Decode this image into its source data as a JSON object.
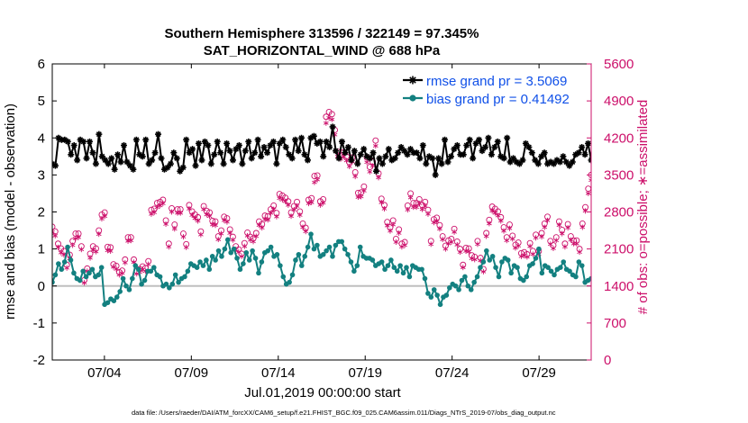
{
  "chart_data": {
    "type": "line",
    "title": "Southern Hemisphere 313596 / 322149 = 97.345%",
    "subtitle": "SAT_HORIZONTAL_WIND @ 688 hPa",
    "xlabel": "Jul.01,2019 00:00:00 start",
    "ylabel": "rmse and bias (model - observation)",
    "y2label": "# of obs: o=possible; ∗=assimilated",
    "footnote": "data file: /Users/raeder/DAI/ATM_forcXX/CAM6_setup/f.e21.FHIST_BGC.f09_025.CAM6assim.011/Diags_NTrS_2019-07/obs_diag_output.nc",
    "xlim": [
      1,
      32
    ],
    "ylim": [
      -2,
      6
    ],
    "y2lim": [
      0,
      5600
    ],
    "xtick_values": [
      4,
      9,
      14,
      19,
      24,
      29
    ],
    "xtick_labels": [
      "07/04",
      "07/09",
      "07/14",
      "07/19",
      "07/24",
      "07/29"
    ],
    "ytick_values": [
      -2,
      -1,
      0,
      1,
      2,
      3,
      4,
      5,
      6
    ],
    "ytick_labels": [
      "-2",
      "-1",
      "0",
      "1",
      "2",
      "3",
      "4",
      "5",
      "6"
    ],
    "y2tick_values": [
      0,
      700,
      1400,
      2100,
      2800,
      3500,
      4200,
      4900,
      5600
    ],
    "y2tick_labels": [
      "0",
      "700",
      "1400",
      "2100",
      "2800",
      "3500",
      "4200",
      "4900",
      "5600"
    ],
    "legend_position": "top-right",
    "colors": {
      "rmse": "#000000",
      "bias": "#138080",
      "obs": "#cc0f6a",
      "legend_text": "#1050e8",
      "right_axis": "#cc0f6a",
      "zero_line": "#bfbfbf"
    },
    "series": [
      {
        "name": "rmse",
        "label": "rmse grand pr = 3.5069",
        "axis": "left",
        "values": [
          3.3,
          3.25,
          4.0,
          3.95,
          3.95,
          3.9,
          3.55,
          3.8,
          3.4,
          3.95,
          3.9,
          3.45,
          3.9,
          3.6,
          3.3,
          4.1,
          3.5,
          3.4,
          3.3,
          3.45,
          3.15,
          3.55,
          3.35,
          3.8,
          3.35,
          3.25,
          3.15,
          3.95,
          3.55,
          3.5,
          3.95,
          3.3,
          3.4,
          3.6,
          4.1,
          3.45,
          3.15,
          3.2,
          3.3,
          3.6,
          3.45,
          3.1,
          3.2,
          3.95,
          3.6,
          3.7,
          3.25,
          3.85,
          3.4,
          3.9,
          3.8,
          3.3,
          3.55,
          3.9,
          3.6,
          3.3,
          3.85,
          3.65,
          3.4,
          3.7,
          3.8,
          3.3,
          3.65,
          3.9,
          3.45,
          3.6,
          3.95,
          3.5,
          3.75,
          3.6,
          3.8,
          3.9,
          3.3,
          3.85,
          3.95,
          3.75,
          3.55,
          3.45,
          3.95,
          3.65,
          4.0,
          3.55,
          3.4,
          4.0,
          4.05,
          3.85,
          3.9,
          3.5,
          3.9,
          3.75,
          4.3,
          3.65,
          3.45,
          3.9,
          3.6,
          3.75,
          3.4,
          3.65,
          3.3,
          3.55,
          3.7,
          3.5,
          3.45,
          3.6,
          3.1,
          3.45,
          3.3,
          3.5,
          3.7,
          3.4,
          3.45,
          3.6,
          3.75,
          3.65,
          3.55,
          3.7,
          3.6,
          3.6,
          3.45,
          3.8,
          3.3,
          3.5,
          3.45,
          3.0,
          3.45,
          3.3,
          3.95,
          3.35,
          3.5,
          3.7,
          3.8,
          3.55,
          3.55,
          3.8,
          3.95,
          3.45,
          3.85,
          3.95,
          3.65,
          3.75,
          4.0,
          3.55,
          3.75,
          3.9,
          3.5,
          3.45,
          4.0,
          3.35,
          3.45,
          3.35,
          3.3,
          3.4,
          3.85,
          3.75,
          3.6,
          3.4,
          3.3,
          3.5,
          3.6,
          3.3,
          3.35,
          3.3,
          3.4,
          3.35,
          3.5,
          3.35,
          3.25,
          3.35,
          3.55,
          3.6,
          3.75,
          3.55,
          3.85,
          3.4
        ]
      },
      {
        "name": "bias",
        "label": "bias grand pr = 0.41492",
        "axis": "left",
        "values": [
          0.1,
          0.3,
          0.6,
          0.45,
          0.65,
          1.05,
          0.7,
          0.35,
          0.2,
          0.15,
          0.4,
          0.25,
          0.35,
          0.45,
          0.25,
          0.3,
          0.5,
          -0.5,
          -0.45,
          -0.35,
          -0.4,
          -0.3,
          -0.15,
          0.2,
          0.0,
          -0.1,
          0.2,
          0.55,
          0.45,
          0.05,
          0.15,
          0.4,
          0.4,
          0.5,
          0.3,
          0.25,
          0.0,
          0.05,
          -0.05,
          0.05,
          0.3,
          0.1,
          0.2,
          0.25,
          0.4,
          0.6,
          0.55,
          0.5,
          0.65,
          0.55,
          0.7,
          0.45,
          0.8,
          0.7,
          0.95,
          0.8,
          1.0,
          1.25,
          0.9,
          1.0,
          0.75,
          0.45,
          0.6,
          0.9,
          0.7,
          0.95,
          0.75,
          0.35,
          0.65,
          0.9,
          0.95,
          1.05,
          0.8,
          0.85,
          0.55,
          0.25,
          0.05,
          0.1,
          0.3,
          0.7,
          0.85,
          0.55,
          0.8,
          1.05,
          1.4,
          1.0,
          1.1,
          0.8,
          0.85,
          0.95,
          1.05,
          0.8,
          1.1,
          1.2,
          1.2,
          1.0,
          0.85,
          0.65,
          0.4,
          0.55,
          1.05,
          0.8,
          0.75,
          0.75,
          0.7,
          0.55,
          0.6,
          0.65,
          0.45,
          0.55,
          0.7,
          0.5,
          0.4,
          0.55,
          0.35,
          0.5,
          0.25,
          0.55,
          0.5,
          0.45,
          0.45,
          0.2,
          -0.2,
          -0.3,
          -0.1,
          -0.25,
          -0.5,
          -0.3,
          -0.25,
          -0.05,
          0.05,
          0.0,
          -0.1,
          0.15,
          0.25,
          0.0,
          -0.1,
          0.1,
          0.25,
          0.5,
          0.65,
          0.95,
          0.7,
          0.8,
          0.5,
          0.25,
          0.65,
          0.75,
          0.7,
          0.35,
          0.55,
          0.5,
          0.2,
          0.15,
          0.25,
          0.55,
          0.6,
          0.75,
          1.0,
          0.35,
          0.55,
          0.5,
          0.4,
          0.3,
          0.45,
          0.5,
          0.65,
          0.45,
          0.4,
          0.3,
          0.25,
          0.65,
          0.55,
          0.1,
          0.15,
          0.2
        ]
      },
      {
        "name": "obs_possible",
        "label": "# of obs possible",
        "axis": "right",
        "values": [
          2520,
          2430,
          2200,
          2110,
          2060,
          1800,
          1990,
          2250,
          2390,
          2390,
          2150,
          1510,
          1730,
          2010,
          2150,
          2110,
          2450,
          2750,
          2790,
          2140,
          2130,
          1810,
          1780,
          1660,
          1690,
          1900,
          2320,
          2320,
          1900,
          1680,
          1720,
          1770,
          1740,
          1870,
          2840,
          2860,
          2970,
          2990,
          3030,
          2640,
          2200,
          2870,
          2560,
          2850,
          2850,
          2390,
          2190,
          2930,
          2810,
          2750,
          2700,
          2430,
          2910,
          2820,
          2790,
          2630,
          2620,
          2340,
          2450,
          2710,
          2680,
          2470,
          2330,
          2150,
          2090,
          2010,
          2210,
          2410,
          2330,
          2300,
          2400,
          2620,
          2570,
          2730,
          2720,
          2850,
          2920,
          2780,
          3140,
          3110,
          3070,
          3000,
          2790,
          2910,
          2990,
          2810,
          2580,
          2500,
          3030,
          3060,
          3480,
          3490,
          3000,
          3040,
          4600,
          4690,
          4650,
          4350,
          3940,
          3880,
          3930,
          3850,
          3740,
          3830,
          3550,
          3160,
          3170,
          3280,
          3830,
          3650,
          3750,
          4150,
          3530,
          3050,
          2930,
          2610,
          2510,
          2640,
          2290,
          2470,
          2200,
          2230,
          2920,
          3150,
          2970,
          2970,
          3040,
          2930,
          2990,
          2840,
          2250,
          2660,
          2690,
          2550,
          2340,
          2160,
          2260,
          2290,
          2480,
          2240,
          2100,
          1800,
          2120,
          2110,
          1980,
          1950,
          2250,
          1930,
          1720,
          2400,
          2650,
          2900,
          2860,
          2810,
          2700,
          2510,
          2320,
          2560,
          2350,
          2180,
          2220,
          2020,
          2040,
          2000,
          2210,
          2060,
          2370,
          2060,
          2400,
          2580,
          2710,
          2250,
          2170,
          2320,
          2620,
          2460,
          2200,
          2570,
          2340,
          2260,
          2260,
          2100,
          2580,
          2890,
          3240,
          3500
        ]
      },
      {
        "name": "obs_assimilated",
        "label": "# of obs assimilated",
        "axis": "right",
        "values": [
          2420,
          2350,
          2130,
          2030,
          1990,
          1740,
          1920,
          2170,
          2300,
          2320,
          2090,
          1460,
          1680,
          1930,
          2080,
          2050,
          2380,
          2670,
          2720,
          2070,
          2060,
          1760,
          1720,
          1610,
          1640,
          1840,
          2250,
          2260,
          1850,
          1630,
          1660,
          1710,
          1680,
          1810,
          2760,
          2790,
          2890,
          2920,
          2960,
          2570,
          2140,
          2800,
          2480,
          2780,
          2780,
          2330,
          2130,
          2860,
          2740,
          2680,
          2630,
          2370,
          2850,
          2750,
          2720,
          2560,
          2550,
          2280,
          2390,
          2640,
          2610,
          2400,
          2270,
          2090,
          2040,
          1960,
          2150,
          2350,
          2270,
          2240,
          2340,
          2550,
          2500,
          2660,
          2650,
          2780,
          2850,
          2710,
          3060,
          3030,
          3000,
          2930,
          2720,
          2840,
          2910,
          2740,
          2510,
          2430,
          2960,
          2980,
          3360,
          3410,
          2930,
          2970,
          4480,
          4580,
          4550,
          4260,
          3850,
          3800,
          3850,
          3770,
          3660,
          3750,
          3470,
          3080,
          3090,
          3200,
          3740,
          3560,
          3670,
          4050,
          3450,
          2980,
          2860,
          2540,
          2440,
          2560,
          2230,
          2400,
          2140,
          2170,
          2840,
          3070,
          2890,
          2890,
          2960,
          2850,
          2910,
          2760,
          2190,
          2600,
          2620,
          2480,
          2280,
          2100,
          2200,
          2230,
          2420,
          2180,
          2040,
          1750,
          2060,
          2050,
          1920,
          1900,
          2190,
          1880,
          1670,
          2340,
          2580,
          2820,
          2780,
          2730,
          2630,
          2440,
          2260,
          2490,
          2290,
          2120,
          2160,
          1960,
          1980,
          1950,
          2150,
          2000,
          2310,
          2000,
          2330,
          2510,
          2640,
          2190,
          2110,
          2260,
          2550,
          2390,
          2140,
          2500,
          2270,
          2200,
          2200,
          2040,
          2510,
          2820,
          3150,
          3400
        ]
      }
    ]
  }
}
